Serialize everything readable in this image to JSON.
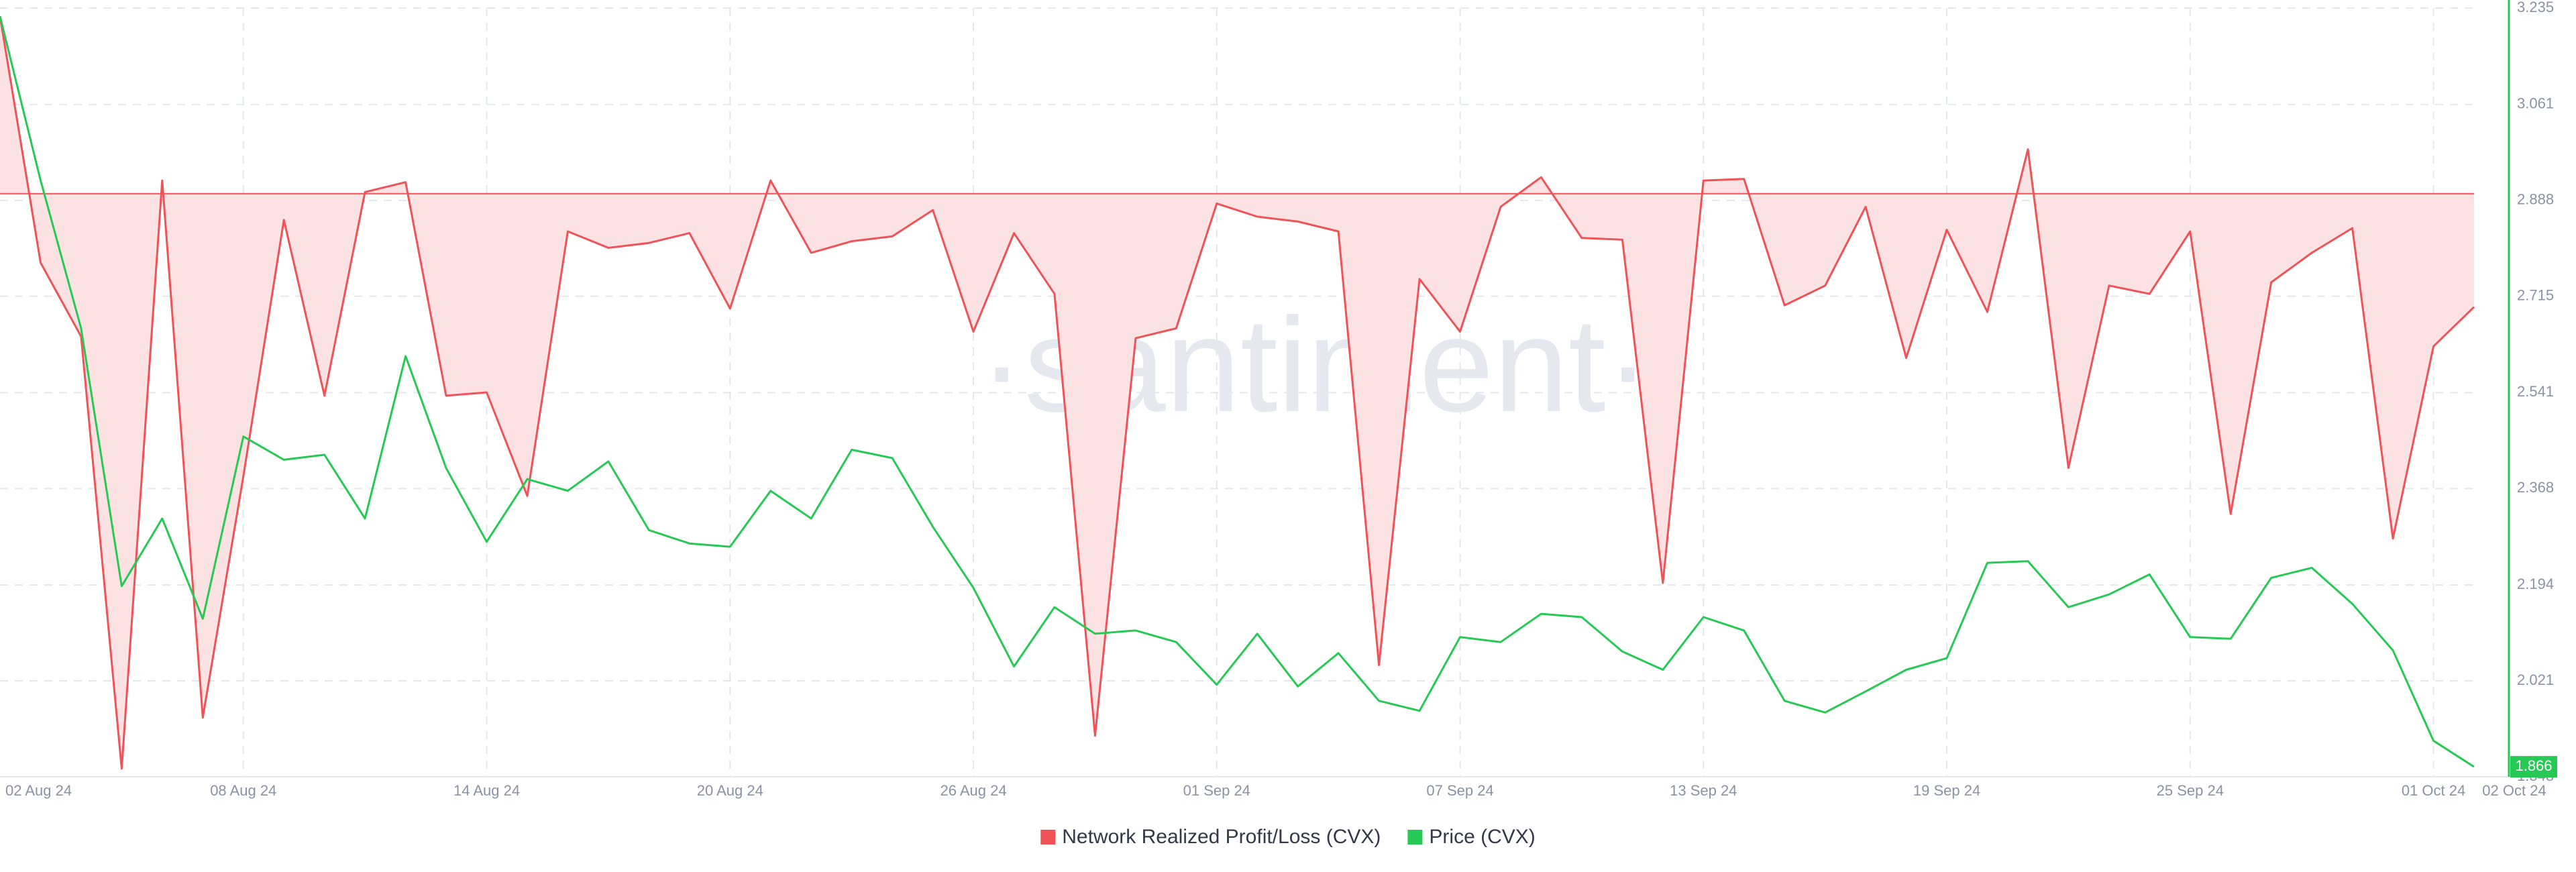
{
  "chart_data": {
    "type": "line",
    "watermark": "·santiment·",
    "categories": [
      "02 Aug 24",
      null,
      null,
      null,
      null,
      null,
      "08 Aug 24",
      null,
      null,
      null,
      null,
      null,
      "14 Aug 24",
      null,
      null,
      null,
      null,
      null,
      "20 Aug 24",
      null,
      null,
      null,
      null,
      null,
      "26 Aug 24",
      null,
      null,
      null,
      null,
      null,
      "01 Sep 24",
      null,
      null,
      null,
      null,
      null,
      "07 Sep 24",
      null,
      null,
      null,
      null,
      null,
      "13 Sep 24",
      null,
      null,
      null,
      null,
      null,
      "19 Sep 24",
      null,
      null,
      null,
      null,
      null,
      "25 Sep 24",
      null,
      null,
      null,
      null,
      null,
      "01 Oct 24",
      "02 Oct 24"
    ],
    "series": [
      {
        "name": "Network Realized Profit/Loss (CVX)",
        "color": "#ef5357",
        "fill": "#fde2e3",
        "axis": "y2",
        "values": [
          108,
          -42,
          -87,
          -350,
          8,
          -319,
          -172,
          -16,
          -123,
          1,
          7,
          -123,
          -121,
          -184,
          -23,
          -33,
          -30,
          -24,
          -70,
          8,
          -36,
          -29,
          -26,
          -10,
          -84,
          -24,
          -61,
          -330,
          -88,
          -82,
          -6,
          -14,
          -17,
          -23,
          -287,
          -52,
          -84,
          -8,
          10,
          -27,
          -28,
          -237,
          8,
          9,
          -68,
          -56,
          -8,
          -100,
          -22,
          -72,
          27,
          -167,
          -56,
          -61,
          -23,
          -195,
          -54,
          -36,
          -21,
          -210,
          -93,
          -69
        ]
      },
      {
        "name": "Price (CVX)",
        "color": "#26c953",
        "values": [
          3.22,
          2.924,
          2.657,
          2.192,
          2.314,
          2.133,
          2.462,
          2.42,
          2.429,
          2.314,
          2.607,
          2.405,
          2.272,
          2.385,
          2.364,
          2.417,
          2.293,
          2.269,
          2.263,
          2.364,
          2.314,
          2.438,
          2.423,
          2.299,
          2.189,
          2.047,
          2.154,
          2.106,
          2.112,
          2.091,
          2.014,
          2.106,
          2.011,
          2.071,
          1.985,
          1.967,
          2.1,
          2.091,
          2.142,
          2.136,
          2.074,
          2.041,
          2.136,
          2.112,
          1.985,
          1.964,
          2.002,
          2.041,
          2.062,
          2.234,
          2.237,
          2.154,
          2.177,
          2.213,
          2.1,
          2.097,
          2.207,
          2.225,
          2.16,
          2.076,
          1.913,
          1.866
        ]
      }
    ],
    "ylim": [
      1.848,
      3.235
    ],
    "yticks": [
      1.848,
      2.021,
      2.194,
      2.368,
      2.541,
      2.715,
      2.888,
      3.061,
      3.235
    ],
    "y2lim": [
      -355,
      113
    ],
    "grid": true
  }
}
